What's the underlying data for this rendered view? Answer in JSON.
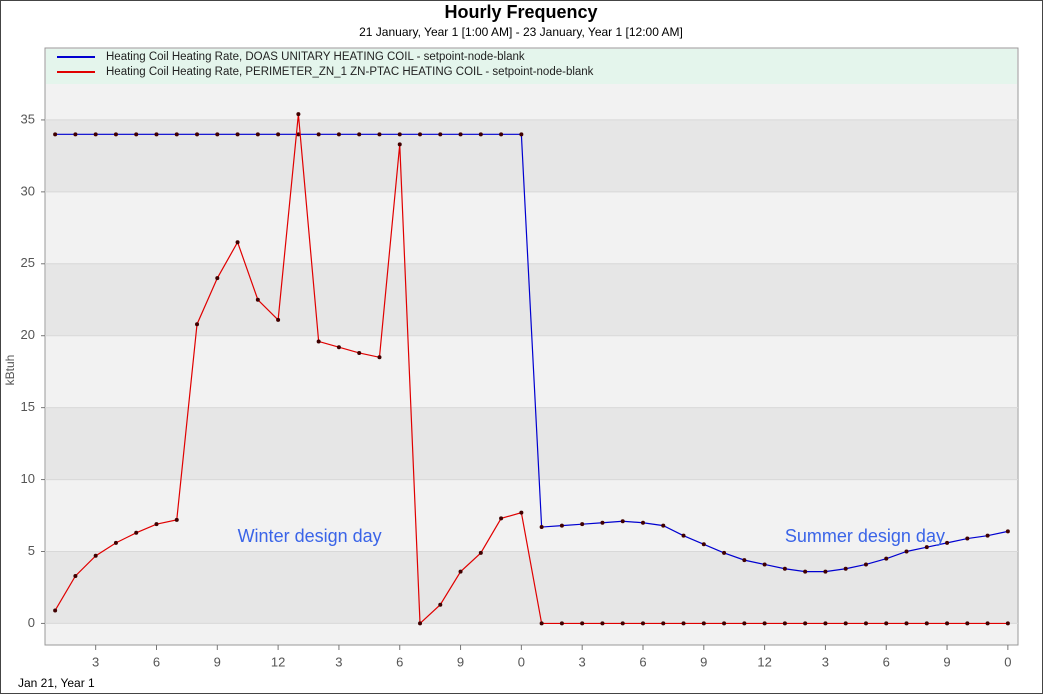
{
  "chart_data": {
    "type": "line",
    "title": "Hourly Frequency",
    "subtitle": "21 January, Year 1 [1:00 AM] - 23 January, Year 1 [12:00 AM]",
    "y_label": "kBtuh",
    "x_label": "Jan 21, Year 1",
    "annotations": [
      {
        "text": "Winter design day",
        "x": 10,
        "y": 6
      },
      {
        "text": "Summer design day",
        "x": 37,
        "y": 6
      }
    ],
    "legend": "top",
    "grid": true,
    "x": [
      1,
      2,
      3,
      4,
      5,
      6,
      7,
      8,
      9,
      10,
      11,
      12,
      13,
      14,
      15,
      16,
      17,
      18,
      19,
      20,
      21,
      22,
      23,
      24,
      25,
      26,
      27,
      28,
      29,
      30,
      31,
      32,
      33,
      34,
      35,
      36,
      37,
      38,
      39,
      40,
      41,
      42,
      43,
      44,
      45,
      46,
      47,
      48
    ],
    "xlim": [
      0.5,
      48.5
    ],
    "xticks": [
      3,
      6,
      9,
      12,
      {
        "value": 15,
        "label": "3"
      },
      {
        "value": 18,
        "label": "6"
      },
      {
        "value": 21,
        "label": "9"
      },
      {
        "value": 24,
        "label": "0"
      },
      {
        "value": 27,
        "label": "3"
      },
      {
        "value": 30,
        "label": "6"
      },
      {
        "value": 33,
        "label": "9"
      },
      {
        "value": 36,
        "label": "12"
      },
      {
        "value": 39,
        "label": "3"
      },
      {
        "value": 42,
        "label": "6"
      },
      {
        "value": 45,
        "label": "9"
      },
      {
        "value": 48,
        "label": "0"
      }
    ],
    "ylim": [
      -1.5,
      40
    ],
    "yticks": [
      0,
      5,
      10,
      15,
      20,
      25,
      30,
      35
    ],
    "series": [
      {
        "name": "Heating Coil Heating Rate, DOAS UNITARY HEATING COIL - setpoint-node-blank",
        "color": "#0000d0",
        "values": [
          34,
          34,
          34,
          34,
          34,
          34,
          34,
          34,
          34,
          34,
          34,
          34,
          34,
          34,
          34,
          34,
          34,
          34,
          34,
          34,
          34,
          34,
          34,
          34,
          6.7,
          6.8,
          6.9,
          7.0,
          7.1,
          7.0,
          6.8,
          6.1,
          5.5,
          4.9,
          4.4,
          4.1,
          3.8,
          3.6,
          3.6,
          3.8,
          4.1,
          4.5,
          5.0,
          5.3,
          5.6,
          5.9,
          6.1,
          6.4
        ]
      },
      {
        "name": "Heating Coil Heating Rate, PERIMETER_ZN_1 ZN-PTAC HEATING COIL - setpoint-node-blank",
        "color": "#e00000",
        "values": [
          0.9,
          3.3,
          4.7,
          5.6,
          6.3,
          6.9,
          7.2,
          20.8,
          24.0,
          26.5,
          22.5,
          21.1,
          35.4,
          19.6,
          19.2,
          18.8,
          18.5,
          33.3,
          0,
          1.3,
          3.6,
          4.9,
          7.3,
          7.7,
          0,
          0,
          0,
          0,
          0,
          0,
          0,
          0,
          0,
          0,
          0,
          0,
          0,
          0,
          0,
          0,
          0,
          0,
          0,
          0,
          0,
          0,
          0,
          0
        ]
      }
    ]
  }
}
